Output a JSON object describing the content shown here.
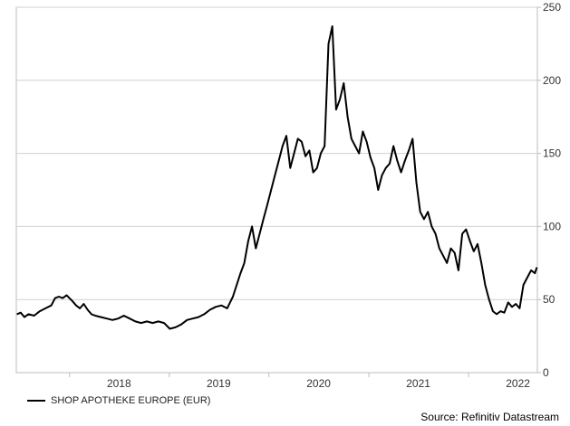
{
  "chart_data": {
    "type": "line",
    "title": "",
    "xlabel": "",
    "ylabel": "",
    "ylim": [
      0,
      250
    ],
    "yticks": [
      0,
      50,
      100,
      150,
      200,
      250
    ],
    "y_axis_side": "right",
    "x_tick_labels": [
      "2018",
      "2019",
      "2020",
      "2021",
      "2022"
    ],
    "xlim": [
      "2017-06-20",
      "2022-09-10"
    ],
    "grid": "horizontal",
    "legend_position": "bottom-left",
    "series": [
      {
        "name": "SHOP APOTHEKE EUROPE (EUR)",
        "color": "#000000",
        "x": [
          "2017-06-22",
          "2017-07-06",
          "2017-07-20",
          "2017-08-03",
          "2017-08-24",
          "2017-09-14",
          "2017-10-05",
          "2017-10-26",
          "2017-11-09",
          "2017-11-23",
          "2017-12-07",
          "2017-12-21",
          "2018-01-11",
          "2018-01-25",
          "2018-02-08",
          "2018-02-22",
          "2018-03-08",
          "2018-03-22",
          "2018-04-05",
          "2018-04-26",
          "2018-05-17",
          "2018-06-07",
          "2018-06-28",
          "2018-07-19",
          "2018-08-09",
          "2018-08-30",
          "2018-09-20",
          "2018-10-11",
          "2018-11-01",
          "2018-11-22",
          "2018-12-13",
          "2019-01-03",
          "2019-01-24",
          "2019-02-14",
          "2019-03-07",
          "2019-03-28",
          "2019-04-18",
          "2019-05-09",
          "2019-05-30",
          "2019-06-20",
          "2019-07-11",
          "2019-08-01",
          "2019-08-22",
          "2019-09-05",
          "2019-09-19",
          "2019-10-03",
          "2019-10-17",
          "2019-10-31",
          "2019-11-14",
          "2019-11-28",
          "2019-12-12",
          "2019-12-26",
          "2020-01-09",
          "2020-01-23",
          "2020-02-06",
          "2020-02-20",
          "2020-03-05",
          "2020-03-19",
          "2020-04-02",
          "2020-04-16",
          "2020-04-30",
          "2020-05-14",
          "2020-05-28",
          "2020-06-11",
          "2020-06-25",
          "2020-07-09",
          "2020-07-23",
          "2020-08-06",
          "2020-08-20",
          "2020-09-03",
          "2020-09-17",
          "2020-10-01",
          "2020-10-15",
          "2020-10-29",
          "2020-11-12",
          "2020-11-26",
          "2020-12-10",
          "2020-12-24",
          "2021-01-07",
          "2021-01-21",
          "2021-02-04",
          "2021-02-18",
          "2021-03-04",
          "2021-03-18",
          "2021-04-01",
          "2021-04-15",
          "2021-04-29",
          "2021-05-13",
          "2021-05-27",
          "2021-06-10",
          "2021-06-24",
          "2021-07-08",
          "2021-07-22",
          "2021-08-05",
          "2021-08-19",
          "2021-09-02",
          "2021-09-16",
          "2021-09-30",
          "2021-10-14",
          "2021-10-28",
          "2021-11-11",
          "2021-11-25",
          "2021-12-09",
          "2021-12-23",
          "2022-01-06",
          "2022-01-20",
          "2022-02-03",
          "2022-02-17",
          "2022-03-03",
          "2022-03-17",
          "2022-03-31",
          "2022-04-14",
          "2022-04-28",
          "2022-05-12",
          "2022-05-26",
          "2022-06-09",
          "2022-06-23",
          "2022-07-07",
          "2022-07-21",
          "2022-08-04",
          "2022-08-18",
          "2022-09-01",
          "2022-09-08"
        ],
        "values": [
          40,
          41,
          38,
          40,
          39,
          42,
          44,
          46,
          51,
          52,
          51,
          53,
          49,
          46,
          44,
          47,
          43,
          40,
          39,
          38,
          37,
          36,
          37,
          39,
          37,
          35,
          34,
          35,
          34,
          35,
          34,
          30,
          31,
          33,
          36,
          37,
          38,
          40,
          43,
          45,
          46,
          44,
          52,
          60,
          68,
          75,
          90,
          100,
          85,
          95,
          105,
          115,
          125,
          135,
          145,
          155,
          162,
          140,
          150,
          160,
          158,
          148,
          152,
          137,
          140,
          150,
          155,
          225,
          237,
          180,
          187,
          198,
          175,
          160,
          155,
          150,
          165,
          158,
          147,
          140,
          125,
          135,
          140,
          143,
          155,
          145,
          137,
          145,
          152,
          160,
          130,
          110,
          105,
          110,
          100,
          95,
          85,
          80,
          75,
          85,
          82,
          70,
          95,
          98,
          90,
          83,
          88,
          75,
          60,
          50,
          42,
          40,
          42,
          41,
          48,
          45,
          47,
          44,
          60,
          65,
          70,
          68,
          72
        ]
      }
    ],
    "source": "Source: Refinitiv Datastream"
  }
}
